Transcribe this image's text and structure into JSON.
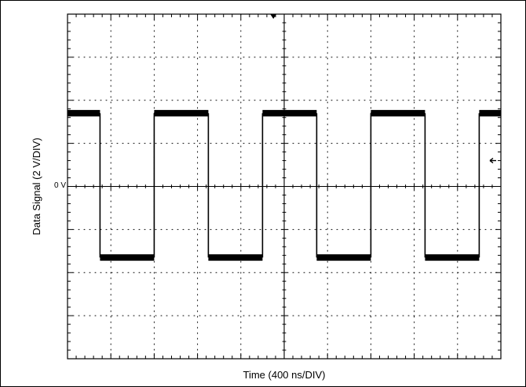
{
  "chart_data": {
    "type": "line",
    "xlabel": "Time (400 ns/DIV)",
    "ylabel": "Data Signal (2 V/DIV)",
    "y_zero_label": "0 V",
    "x_divisions": 10,
    "y_divisions": 8,
    "xlim": [
      0,
      4000
    ],
    "ylim": [
      -8,
      8
    ],
    "x_unit": "ns",
    "y_unit": "V",
    "grid": true,
    "grid_style": "dotted",
    "trace_color": "#000000",
    "trigger_marker": {
      "x": 1900,
      "shape": "down-triangle"
    },
    "level_marker": {
      "y": 1.2,
      "shape": "left-arrow"
    },
    "series": [
      {
        "waveform": "square",
        "high_level": 3.4,
        "low_level": -3.3,
        "trace_noise": 0.15,
        "rising_edges": [
          800,
          1800,
          2800,
          3800
        ],
        "falling_edges": [
          300,
          1300,
          2300,
          3300
        ]
      }
    ]
  }
}
